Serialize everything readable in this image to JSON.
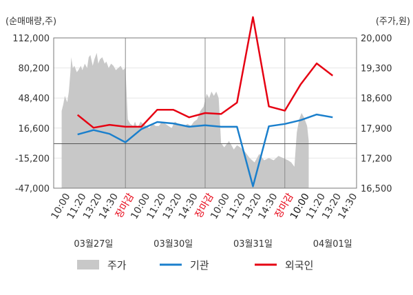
{
  "chart_data": {
    "type": "line",
    "left_axis_unit": "(순매매량,주)",
    "right_axis_unit": "(주가,원)",
    "left_ticks": [
      "112,000",
      "80,200",
      "48,400",
      "16,600",
      "-15,200",
      "-47,000"
    ],
    "right_ticks": [
      "20,000",
      "19,300",
      "18,600",
      "17,900",
      "17,200",
      "16,500"
    ],
    "left_ylim": [
      -47000,
      112000
    ],
    "right_ylim": [
      16500,
      20000
    ],
    "x_tick_labels": [
      "10:00",
      "11:20",
      "13:20",
      "14:30",
      "장마감",
      "10:00",
      "11:20",
      "13:20",
      "14:30",
      "장마감",
      "10:00",
      "11:20",
      "13:20",
      "14:30",
      "장마감",
      "10:00",
      "11:20",
      "13:20",
      "14:30"
    ],
    "x_tick_colors": [
      "#333333",
      "#333333",
      "#333333",
      "#333333",
      "#e60012",
      "#333333",
      "#333333",
      "#333333",
      "#333333",
      "#e60012",
      "#333333",
      "#333333",
      "#333333",
      "#333333",
      "#e60012",
      "#111111",
      "#333333",
      "#333333",
      "#333333"
    ],
    "dates": [
      "03월27일",
      "03월30일",
      "03월31일",
      "04월01일"
    ],
    "x_count": 19,
    "legend": [
      {
        "key": "price",
        "label": "주가",
        "color": "#c8c8c8"
      },
      {
        "key": "institution",
        "label": "기관",
        "color": "#1a7fcc"
      },
      {
        "key": "foreign",
        "label": "외국인",
        "color": "#e60012"
      }
    ],
    "series": [
      {
        "name": "기관",
        "color": "#1a7fcc",
        "x": [
          1,
          2,
          3,
          4,
          5,
          6,
          7,
          8,
          9,
          10,
          11,
          12,
          13,
          14,
          15,
          16,
          17
        ],
        "values": [
          9800,
          14500,
          10500,
          1500,
          15500,
          23000,
          21500,
          18000,
          19500,
          18000,
          18000,
          -45000,
          18500,
          21000,
          25000,
          31000,
          28000
        ]
      },
      {
        "name": "외국인",
        "color": "#e60012",
        "x": [
          1,
          2,
          3,
          4,
          5,
          6,
          7,
          8,
          9,
          10,
          11,
          12,
          13,
          14,
          15,
          16,
          17
        ],
        "values": [
          30500,
          17000,
          20000,
          18000,
          18000,
          36000,
          36000,
          28000,
          32500,
          31500,
          43500,
          134000,
          39500,
          35000,
          63000,
          85000,
          72000
        ]
      }
    ],
    "price_series": {
      "name": "주가",
      "x": [
        0,
        0.1,
        0.2,
        0.35,
        0.45,
        0.55,
        0.6,
        0.7,
        0.8,
        0.95,
        1.05,
        1.2,
        1.3,
        1.45,
        1.6,
        1.7,
        1.8,
        1.95,
        2.05,
        2.2,
        2.3,
        2.4,
        2.55,
        2.7,
        2.8,
        2.95,
        3.1,
        3.25,
        3.4,
        3.55,
        3.7,
        3.85,
        4.0,
        4.15,
        4.3,
        4.5,
        4.6,
        4.75,
        4.95,
        5.1,
        5.3,
        5.5,
        5.7,
        5.9,
        6.1,
        6.3,
        6.5,
        6.7,
        6.9,
        7.1,
        7.3,
        7.5,
        7.7,
        7.9,
        8.1,
        8.3,
        8.5,
        8.7,
        8.9,
        9.1,
        9.25,
        9.4,
        9.55,
        9.7,
        9.85,
        10.0,
        10.2,
        10.5,
        10.8,
        11.0,
        11.2,
        11.5,
        11.8,
        12.1,
        12.4,
        12.7,
        13.0,
        13.3,
        13.6,
        13.9,
        14.2,
        14.4,
        14.6,
        14.75,
        14.9,
        15.05,
        15.2,
        15.4,
        15.5
      ],
      "values": [
        18300,
        18450,
        18650,
        18500,
        18750,
        19200,
        19550,
        19300,
        19350,
        19200,
        19250,
        19350,
        19250,
        19400,
        19300,
        19550,
        19600,
        19350,
        19500,
        19650,
        19400,
        19500,
        19550,
        19400,
        19450,
        19300,
        19400,
        19350,
        19250,
        19300,
        19350,
        19250,
        19300,
        18100,
        18000,
        17950,
        18050,
        17900,
        18050,
        18000,
        17950,
        17900,
        18000,
        17950,
        17950,
        18050,
        18000,
        17950,
        17900,
        18050,
        18000,
        17950,
        17950,
        18000,
        17950,
        18050,
        18100,
        18300,
        18400,
        18700,
        18600,
        18750,
        18650,
        18750,
        18600,
        17550,
        17450,
        17600,
        17400,
        17500,
        17450,
        17350,
        17200,
        17100,
        17300,
        17150,
        17200,
        17150,
        17250,
        17200,
        17150,
        17100,
        17000,
        17800,
        18100,
        18250,
        18150,
        17950,
        17600
      ]
    }
  }
}
